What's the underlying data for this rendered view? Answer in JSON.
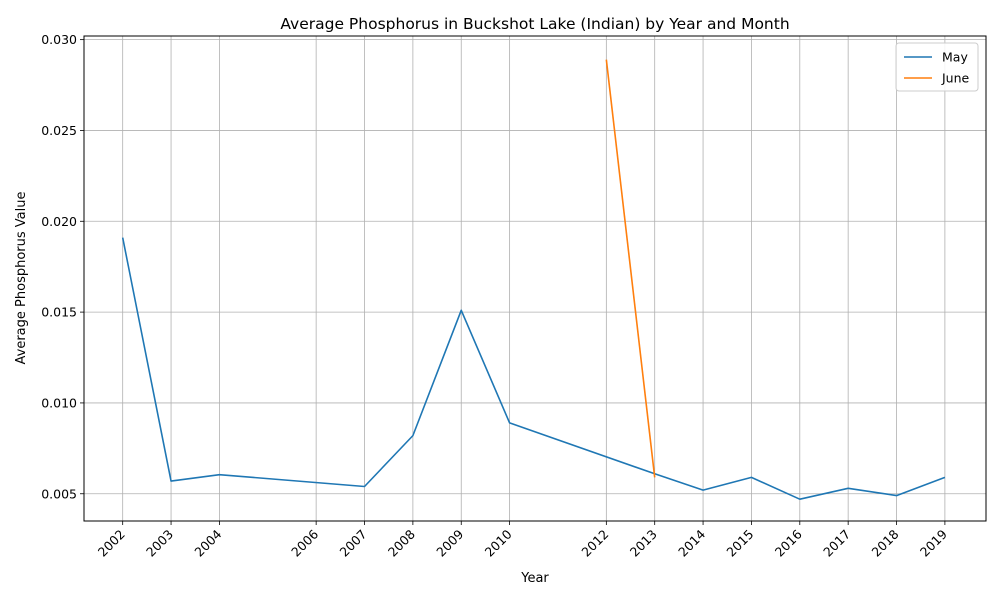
{
  "chart_data": {
    "type": "line",
    "title": "Average Phosphorus in Buckshot Lake (Indian) by Year and Month",
    "xlabel": "Year",
    "ylabel": "Average Phosphorus Value",
    "x_ticks": [
      2002,
      2003,
      2004,
      2006,
      2007,
      2008,
      2009,
      2010,
      2012,
      2013,
      2014,
      2015,
      2016,
      2017,
      2018,
      2019
    ],
    "y_ticks": [
      "0.005",
      "0.010",
      "0.015",
      "0.020",
      "0.025",
      "0.030"
    ],
    "xlim": [
      2001.2,
      2019.85
    ],
    "ylim": [
      0.0035,
      0.0302
    ],
    "grid": true,
    "legend_position": "top-right",
    "series": [
      {
        "name": "May",
        "color": "#1f77b4",
        "x": [
          2002,
          2003,
          2004,
          2007,
          2008,
          2009,
          2010,
          2013,
          2014,
          2015,
          2016,
          2017,
          2018,
          2019
        ],
        "y": [
          0.0191,
          0.0057,
          0.00605,
          0.0054,
          0.0082,
          0.0151,
          0.0089,
          0.0061,
          0.0052,
          0.0059,
          0.0047,
          0.0053,
          0.0049,
          0.0059
        ]
      },
      {
        "name": "June",
        "color": "#ff7f0e",
        "x": [
          2012,
          2013
        ],
        "y": [
          0.0289,
          0.0059
        ]
      }
    ]
  }
}
